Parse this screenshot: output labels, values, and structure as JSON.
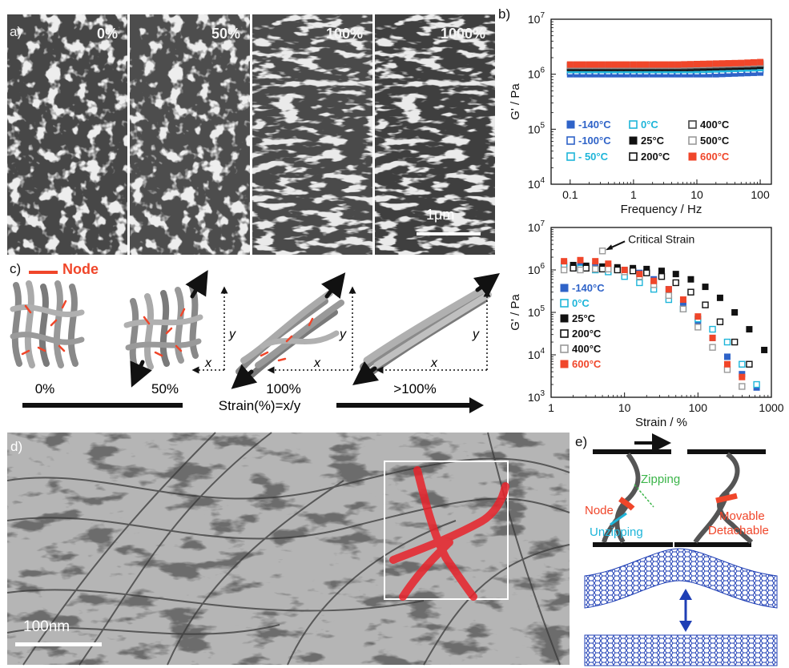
{
  "panel_a": {
    "letter": "a)",
    "labels": [
      "0%",
      "50%",
      "100%",
      "1000%"
    ],
    "scale_bar": "1μm"
  },
  "panel_b": {
    "letter": "b)"
  },
  "panel_c": {
    "letter": "c)",
    "legend": "Node",
    "strains": [
      "0%",
      "50%",
      "100%",
      ">100%"
    ],
    "formula": "Strain(%)=x/y",
    "axis_x": "x",
    "axis_y": "y"
  },
  "panel_d": {
    "letter": "d)",
    "scale_bar": "100nm"
  },
  "panel_e": {
    "letter": "e)",
    "node": "Node",
    "zipping": "Zipping",
    "unzipping": "Unzipping",
    "movable": "Movable",
    "detachable": "Detachable"
  },
  "colors": {
    "red": "#f0462a",
    "blue": "#2f63c8",
    "cyan": "#1eb5d9",
    "green": "#3cb54a"
  },
  "chart_data": [
    {
      "type": "scatter",
      "xlabel": "Frequency / Hz",
      "ylabel": "G' / Pa",
      "x_scale": "log",
      "y_scale": "log",
      "xlim": [
        0.05,
        150
      ],
      "ylim": [
        10000,
        10000000
      ],
      "x_ticks": [
        {
          "v": 0.1,
          "label": "0.1"
        },
        {
          "v": 1,
          "label": "1"
        },
        {
          "v": 10,
          "label": "10"
        },
        {
          "v": 100,
          "label": "100"
        }
      ],
      "y_ticks": [
        {
          "v": 10000,
          "base": "10",
          "exp": "4"
        },
        {
          "v": 100000,
          "base": "10",
          "exp": "5"
        },
        {
          "v": 1000000,
          "base": "10",
          "exp": "6"
        },
        {
          "v": 10000000,
          "base": "10",
          "exp": "7"
        }
      ],
      "x": [
        0.1,
        0.126,
        0.158,
        0.2,
        0.251,
        0.316,
        0.398,
        0.5,
        0.63,
        0.79,
        1,
        1.26,
        1.58,
        2,
        2.51,
        3.16,
        3.98,
        5,
        6.3,
        7.9,
        10,
        12.6,
        15.8,
        20,
        25.1,
        31.6,
        39.8,
        50,
        63,
        79,
        100
      ],
      "series": [
        {
          "name": "-140°C",
          "marker": "filled",
          "color": "#2f63c8",
          "values": [
            1000000,
            1000000,
            1000000,
            1000000,
            1000000,
            1000000,
            1000000,
            1000000,
            1000000,
            1000000,
            1000000,
            1000000,
            1000000,
            1000000,
            1000000,
            1000000,
            1000000,
            1000000,
            1000000,
            1000000,
            1000000,
            1000000,
            1000000,
            1000000,
            1010000,
            1020000,
            1030000,
            1040000,
            1050000,
            1060000,
            1070000
          ]
        },
        {
          "name": "-100°C",
          "marker": "open",
          "color": "#2f63c8",
          "values": [
            1100000,
            1100000,
            1100000,
            1100000,
            1100000,
            1100000,
            1100000,
            1100000,
            1100000,
            1100000,
            1100000,
            1100000,
            1100000,
            1100000,
            1100000,
            1100000,
            1100000,
            1100000,
            1100000,
            1100000,
            1100000,
            1100000,
            1110000,
            1120000,
            1130000,
            1140000,
            1150000,
            1160000,
            1170000,
            1180000,
            1190000
          ]
        },
        {
          "name": "- 50°C",
          "marker": "open",
          "color": "#1eb5d9",
          "values": [
            1200000,
            1200000,
            1200000,
            1200000,
            1200000,
            1200000,
            1200000,
            1200000,
            1200000,
            1200000,
            1200000,
            1200000,
            1200000,
            1200000,
            1200000,
            1200000,
            1200000,
            1200000,
            1200000,
            1200000,
            1200000,
            1210000,
            1220000,
            1230000,
            1240000,
            1250000,
            1260000,
            1270000,
            1280000,
            1290000,
            1300000
          ]
        },
        {
          "name": "0°C",
          "marker": "open",
          "color": "#1eb5d9",
          "values": [
            1250000,
            1250000,
            1250000,
            1250000,
            1250000,
            1250000,
            1250000,
            1250000,
            1250000,
            1250000,
            1250000,
            1250000,
            1250000,
            1250000,
            1250000,
            1250000,
            1250000,
            1250000,
            1250000,
            1250000,
            1260000,
            1270000,
            1280000,
            1290000,
            1300000,
            1310000,
            1320000,
            1330000,
            1340000,
            1350000,
            1360000
          ]
        },
        {
          "name": "25°C",
          "marker": "filled",
          "color": "#111111",
          "values": [
            1300000,
            1300000,
            1300000,
            1300000,
            1300000,
            1300000,
            1300000,
            1300000,
            1300000,
            1300000,
            1300000,
            1300000,
            1300000,
            1300000,
            1300000,
            1300000,
            1300000,
            1300000,
            1300000,
            1300000,
            1310000,
            1320000,
            1330000,
            1340000,
            1350000,
            1360000,
            1370000,
            1380000,
            1390000,
            1400000,
            1420000
          ]
        },
        {
          "name": "200°C",
          "marker": "open",
          "color": "#111111",
          "values": [
            1350000,
            1350000,
            1350000,
            1350000,
            1350000,
            1350000,
            1350000,
            1350000,
            1350000,
            1350000,
            1350000,
            1350000,
            1350000,
            1350000,
            1350000,
            1350000,
            1350000,
            1350000,
            1350000,
            1360000,
            1370000,
            1380000,
            1390000,
            1400000,
            1410000,
            1420000,
            1430000,
            1440000,
            1450000,
            1460000,
            1480000
          ]
        },
        {
          "name": "400°C",
          "marker": "open",
          "color": "#444444",
          "values": [
            1400000,
            1400000,
            1400000,
            1400000,
            1400000,
            1400000,
            1400000,
            1400000,
            1400000,
            1400000,
            1400000,
            1400000,
            1400000,
            1400000,
            1400000,
            1400000,
            1400000,
            1400000,
            1400000,
            1410000,
            1420000,
            1430000,
            1440000,
            1450000,
            1460000,
            1470000,
            1480000,
            1490000,
            1500000,
            1520000,
            1540000
          ]
        },
        {
          "name": "500°C",
          "marker": "open",
          "color": "#999999",
          "values": [
            1450000,
            1450000,
            1450000,
            1450000,
            1450000,
            1450000,
            1450000,
            1450000,
            1450000,
            1450000,
            1450000,
            1450000,
            1450000,
            1450000,
            1450000,
            1450000,
            1450000,
            1450000,
            1460000,
            1470000,
            1480000,
            1490000,
            1500000,
            1510000,
            1520000,
            1530000,
            1540000,
            1550000,
            1560000,
            1580000,
            1600000
          ]
        },
        {
          "name": "600°C",
          "marker": "filled",
          "color": "#f0462a",
          "values": [
            1500000,
            1500000,
            1500000,
            1500000,
            1500000,
            1500000,
            1500000,
            1500000,
            1500000,
            1500000,
            1500000,
            1500000,
            1500000,
            1500000,
            1500000,
            1500000,
            1500000,
            1500000,
            1510000,
            1520000,
            1530000,
            1540000,
            1550000,
            1560000,
            1570000,
            1580000,
            1590000,
            1600000,
            1620000,
            1640000,
            1660000
          ]
        }
      ],
      "legend_columns": [
        [
          "-140°C",
          "-100°C",
          "- 50°C"
        ],
        [
          "0°C",
          "25°C",
          "200°C"
        ],
        [
          "400°C",
          "500°C",
          "600°C"
        ]
      ]
    },
    {
      "type": "scatter",
      "xlabel": "Strain / %",
      "ylabel": "G' / Pa",
      "x_scale": "log",
      "y_scale": "log",
      "xlim": [
        1,
        1000
      ],
      "ylim": [
        1000,
        10000000
      ],
      "x_ticks": [
        {
          "v": 1,
          "label": "1"
        },
        {
          "v": 10,
          "label": "10"
        },
        {
          "v": 100,
          "label": "100"
        },
        {
          "v": 1000,
          "label": "1000"
        }
      ],
      "y_ticks": [
        {
          "v": 1000,
          "base": "10",
          "exp": "3"
        },
        {
          "v": 10000,
          "base": "10",
          "exp": "4"
        },
        {
          "v": 100000,
          "base": "10",
          "exp": "5"
        },
        {
          "v": 1000000,
          "base": "10",
          "exp": "6"
        },
        {
          "v": 10000000,
          "base": "10",
          "exp": "7"
        }
      ],
      "annotation": {
        "text": "Critical Strain",
        "x": 5,
        "y": 2800000
      },
      "series": [
        {
          "name": "-140°C",
          "marker": "filled",
          "color": "#2f63c8",
          "x": [
            1.5,
            2.5,
            4,
            6,
            10,
            16,
            25,
            40,
            63,
            100,
            158,
            251,
            398,
            630
          ],
          "values": [
            1400000,
            1300000,
            1250000,
            1200000,
            1000000,
            850000,
            600000,
            350000,
            160000,
            60000,
            25000,
            9000,
            3500,
            1700
          ]
        },
        {
          "name": "0°C",
          "marker": "open",
          "color": "#1eb5d9",
          "x": [
            1.5,
            2.5,
            4,
            6,
            10,
            16,
            25,
            40,
            63,
            100,
            158,
            251,
            398,
            630
          ],
          "values": [
            1200000,
            1100000,
            1000000,
            900000,
            700000,
            500000,
            350000,
            200000,
            120000,
            70000,
            40000,
            20000,
            6000,
            2000
          ]
        },
        {
          "name": "25°C",
          "marker": "filled",
          "color": "#111111",
          "x": [
            2,
            3,
            5,
            8,
            13,
            20,
            32,
            50,
            80,
            126,
            200,
            316,
            500,
            800
          ],
          "values": [
            1300000,
            1250000,
            1200000,
            1150000,
            1100000,
            1050000,
            950000,
            800000,
            600000,
            400000,
            220000,
            100000,
            40000,
            13000
          ]
        },
        {
          "name": "200°C",
          "marker": "open",
          "color": "#111111",
          "x": [
            2,
            3,
            5,
            8,
            13,
            20,
            32,
            50,
            80,
            126,
            200,
            316,
            500
          ],
          "values": [
            1100000,
            1100000,
            1050000,
            1000000,
            950000,
            850000,
            700000,
            500000,
            300000,
            150000,
            60000,
            20000,
            6000
          ]
        },
        {
          "name": "400°C",
          "marker": "open",
          "color": "#999999",
          "x": [
            1.5,
            2.5,
            4,
            5,
            6,
            10,
            16,
            25,
            40,
            63,
            100,
            158,
            251,
            398
          ],
          "values": [
            1000000,
            1000000,
            1050000,
            2800000,
            1050000,
            900000,
            700000,
            450000,
            250000,
            120000,
            45000,
            15000,
            4500,
            1800
          ]
        },
        {
          "name": "600°C",
          "marker": "filled",
          "color": "#f0462a",
          "x": [
            1.5,
            2.5,
            4,
            6,
            10,
            16,
            25,
            40,
            63,
            100,
            158,
            251,
            398
          ],
          "values": [
            1600000,
            1700000,
            1600000,
            1400000,
            1000000,
            800000,
            550000,
            350000,
            200000,
            80000,
            25000,
            6000,
            3000
          ]
        }
      ],
      "legend": [
        "-140°C",
        "0°C",
        "25°C",
        "200°C",
        "400°C",
        "600°C"
      ]
    }
  ]
}
